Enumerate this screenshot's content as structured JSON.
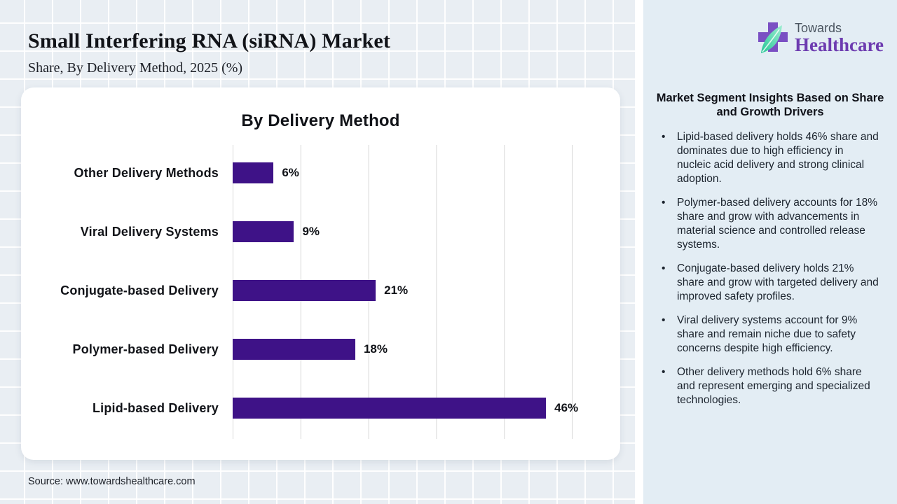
{
  "header": {
    "title": "Small Interfering RNA (siRNA) Market",
    "subtitle": "Share, By Delivery Method, 2025 (%)"
  },
  "chart_data": {
    "type": "bar",
    "orientation": "horizontal",
    "title": "By Delivery Method",
    "categories": [
      "Other Delivery Methods",
      "Viral Delivery Systems",
      "Conjugate-based Delivery",
      "Polymer-based Delivery",
      "Lipid-based Delivery"
    ],
    "values": [
      6,
      9,
      21,
      18,
      46
    ],
    "value_labels": [
      "6%",
      "9%",
      "21%",
      "18%",
      "46%"
    ],
    "xlim": [
      0,
      50
    ],
    "gridline_step": 10,
    "grid": "vertical",
    "legend": "none",
    "bar_color": "#3e1287"
  },
  "sidebar": {
    "logo": {
      "line1": "Towards",
      "line2": "Healthcare"
    },
    "heading": "Market Segment Insights Based on Share and Growth Drivers",
    "bullets": [
      "Lipid-based delivery holds 46% share and dominates due to high efficiency in nucleic acid delivery and strong clinical adoption.",
      "Polymer-based delivery accounts for 18% share and grow with advancements in material science and controlled release systems.",
      "Conjugate-based delivery holds 21% share and grow with targeted delivery and improved safety profiles.",
      "Viral delivery systems account for 9% share and remain niche due to safety concerns despite high efficiency.",
      "Other delivery methods hold 6% share and represent emerging and specialized technologies."
    ]
  },
  "footer": {
    "source": "Source: www.towardshealthcare.com"
  },
  "colors": {
    "bar": "#3e1287",
    "main_background": "#e9eef3",
    "sidebar_background": "#e3edf4",
    "gridline": "#d8d8d8",
    "logo_purple": "#7a4fc3",
    "logo_leaf_teal": "#35d9a8",
    "healthcare_text": "#6d3cb0"
  }
}
